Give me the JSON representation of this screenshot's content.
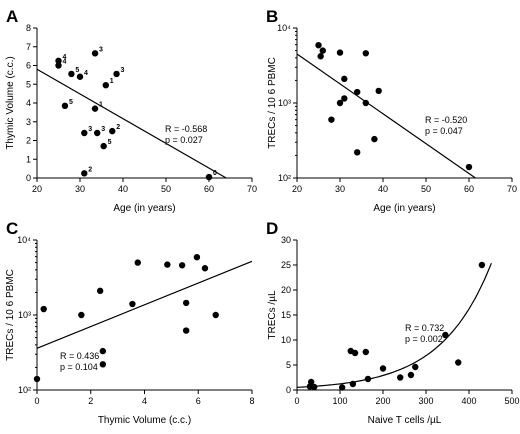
{
  "chart_data": [
    {
      "panel": "A",
      "type": "scatter",
      "xlabel": "Age (in years)",
      "ylabel": "Thymic Volume (c.c.)",
      "xlim": [
        20,
        70
      ],
      "ylim": [
        0,
        8
      ],
      "xticks": [
        20,
        30,
        40,
        50,
        60,
        70
      ],
      "yticks": [
        0,
        1,
        2,
        3,
        4,
        5,
        6,
        7,
        8
      ],
      "scale": "linear",
      "points": [
        {
          "x": 25,
          "y": 6.25,
          "label": "4"
        },
        {
          "x": 25,
          "y": 6.0,
          "label": "4"
        },
        {
          "x": 28,
          "y": 5.55,
          "label": "5"
        },
        {
          "x": 30,
          "y": 5.4,
          "label": "4"
        },
        {
          "x": 33.5,
          "y": 6.65,
          "label": "3"
        },
        {
          "x": 36,
          "y": 4.95,
          "label": "1"
        },
        {
          "x": 38.5,
          "y": 5.55,
          "label": "3"
        },
        {
          "x": 26.5,
          "y": 3.85,
          "label": "5"
        },
        {
          "x": 33.5,
          "y": 3.7,
          "label": "1"
        },
        {
          "x": 31,
          "y": 2.4,
          "label": "3"
        },
        {
          "x": 34,
          "y": 2.4,
          "label": "3"
        },
        {
          "x": 37.5,
          "y": 2.5,
          "label": "2"
        },
        {
          "x": 35.5,
          "y": 1.7,
          "label": "5"
        },
        {
          "x": 31,
          "y": 0.25,
          "label": "2"
        },
        {
          "x": 60,
          "y": 0.05,
          "label": "0"
        }
      ],
      "fit": {
        "type": "linear",
        "x0": 20,
        "y0": 5.8,
        "x1": 64,
        "y1": 0
      },
      "stats": [
        "R = -0.568",
        "p = 0.027"
      ]
    },
    {
      "panel": "B",
      "type": "scatter",
      "xlabel": "Age (in years)",
      "ylabel": "TRECs / 10 6 PBMC",
      "xlim": [
        20,
        70
      ],
      "ylim": [
        100,
        10000
      ],
      "xticks": [
        20,
        30,
        40,
        50,
        60,
        70
      ],
      "yticks": [
        100,
        1000,
        10000
      ],
      "ytick_labels": [
        "10²",
        "10³",
        "10⁴"
      ],
      "scale": "log-y",
      "points": [
        {
          "x": 25,
          "y": 5900
        },
        {
          "x": 25.5,
          "y": 4200
        },
        {
          "x": 26,
          "y": 5000
        },
        {
          "x": 30,
          "y": 4700
        },
        {
          "x": 36,
          "y": 4600
        },
        {
          "x": 31,
          "y": 2100
        },
        {
          "x": 34,
          "y": 1400
        },
        {
          "x": 30,
          "y": 1000
        },
        {
          "x": 31,
          "y": 1150
        },
        {
          "x": 36,
          "y": 1000
        },
        {
          "x": 39,
          "y": 1450
        },
        {
          "x": 28,
          "y": 600
        },
        {
          "x": 38,
          "y": 330
        },
        {
          "x": 34,
          "y": 220
        },
        {
          "x": 60,
          "y": 140
        }
      ],
      "fit": {
        "type": "linear-log",
        "x0": 20,
        "y0": 4500,
        "x1": 61.5,
        "y1": 100
      },
      "stats": [
        "R = -0.520",
        "p = 0.047"
      ]
    },
    {
      "panel": "C",
      "type": "scatter",
      "xlabel": "Thymic Volume (c.c.)",
      "ylabel": "TRECs / 10 6 PBMC",
      "xlim": [
        0,
        8
      ],
      "ylim": [
        100,
        10000
      ],
      "xticks": [
        0,
        2,
        4,
        6,
        8
      ],
      "yticks": [
        100,
        1000,
        10000
      ],
      "ytick_labels": [
        "10²",
        "10³",
        "10⁴"
      ],
      "scale": "log-y",
      "points": [
        {
          "x": 0.0,
          "y": 140
        },
        {
          "x": 0.25,
          "y": 1200
        },
        {
          "x": 1.65,
          "y": 1000
        },
        {
          "x": 2.35,
          "y": 2100
        },
        {
          "x": 2.45,
          "y": 330
        },
        {
          "x": 2.45,
          "y": 220
        },
        {
          "x": 3.55,
          "y": 1400
        },
        {
          "x": 3.75,
          "y": 5000
        },
        {
          "x": 4.85,
          "y": 4700
        },
        {
          "x": 5.4,
          "y": 4600
        },
        {
          "x": 5.95,
          "y": 5900
        },
        {
          "x": 6.25,
          "y": 4200
        },
        {
          "x": 5.55,
          "y": 1450
        },
        {
          "x": 5.55,
          "y": 620
        },
        {
          "x": 6.65,
          "y": 1000
        }
      ],
      "fit": {
        "type": "linear-log",
        "x0": 0,
        "y0": 360,
        "x1": 8,
        "y1": 5200
      },
      "stats": [
        "R = 0.436",
        "p = 0.104"
      ]
    },
    {
      "panel": "D",
      "type": "scatter",
      "xlabel": "Naive T cells /µL",
      "ylabel": "TRECs /µL",
      "xlim": [
        0,
        500
      ],
      "ylim": [
        0,
        30
      ],
      "xticks": [
        0,
        100,
        200,
        300,
        400,
        500
      ],
      "yticks": [
        0,
        5,
        10,
        15,
        20,
        25,
        30
      ],
      "scale": "linear",
      "points": [
        {
          "x": 30,
          "y": 0.7
        },
        {
          "x": 33,
          "y": 1.6
        },
        {
          "x": 40,
          "y": 0.6
        },
        {
          "x": 105,
          "y": 0.5
        },
        {
          "x": 125,
          "y": 7.8
        },
        {
          "x": 135,
          "y": 7.4
        },
        {
          "x": 130,
          "y": 1.2
        },
        {
          "x": 160,
          "y": 7.6
        },
        {
          "x": 165,
          "y": 2.2
        },
        {
          "x": 200,
          "y": 4.3
        },
        {
          "x": 240,
          "y": 2.5
        },
        {
          "x": 265,
          "y": 3.0
        },
        {
          "x": 275,
          "y": 4.6
        },
        {
          "x": 345,
          "y": 11.0
        },
        {
          "x": 375,
          "y": 5.5
        },
        {
          "x": 430,
          "y": 25.0
        }
      ],
      "fit": {
        "type": "exponential",
        "a": 0.52,
        "b": 0.0086,
        "x0": 0,
        "x1": 452
      },
      "stats": [
        "R = 0.732",
        "p = 0.002"
      ]
    }
  ]
}
